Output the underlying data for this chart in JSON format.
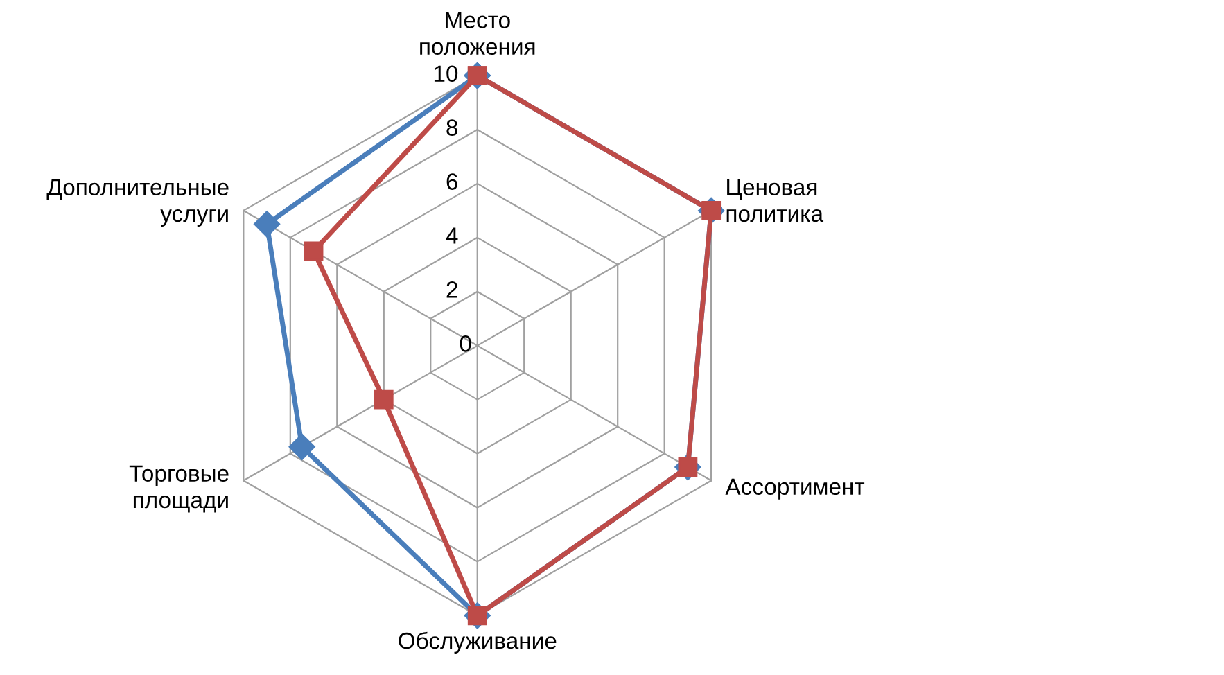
{
  "chart_data": {
    "type": "radar",
    "categories": [
      "Место\nположения",
      "Ценовая\nполитика",
      "Ассортимент",
      "Обслуживание",
      "Торговые\nплощади",
      "Дополнительные\nуслуги"
    ],
    "series": [
      {
        "color": "#4a7ebb",
        "marker": "diamond",
        "values": [
          10,
          10,
          9,
          10,
          7.5,
          9
        ]
      },
      {
        "color": "#be4b48",
        "marker": "square",
        "values": [
          10,
          10,
          9,
          10,
          4,
          7
        ]
      }
    ],
    "ylim": [
      0,
      10
    ],
    "yticks": [
      0,
      2,
      4,
      6,
      8,
      10
    ],
    "grid": true
  }
}
